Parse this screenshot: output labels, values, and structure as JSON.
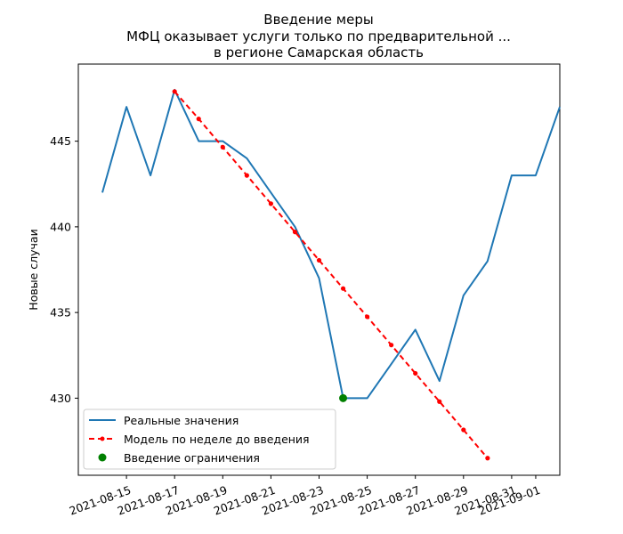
{
  "chart_data": {
    "type": "line",
    "title_lines": [
      "Введение меры",
      "МФЦ оказывает услуги только по предварительной ...",
      "в регионе Самарская область"
    ],
    "xlabel": "",
    "ylabel": "Новые случаи",
    "x_ticks": [
      "2021-08-15",
      "2021-08-17",
      "2021-08-19",
      "2021-08-21",
      "2021-08-23",
      "2021-08-25",
      "2021-08-27",
      "2021-08-29",
      "2021-08-31",
      "2021-09-01"
    ],
    "y_ticks": [
      430,
      435,
      440,
      445
    ],
    "xlim": [
      "2021-08-13",
      "2021-09-02"
    ],
    "ylim": [
      425.5,
      449.5
    ],
    "grid": false,
    "legend_position": "lower-left",
    "series": [
      {
        "name": "Реальные значения",
        "color": "#1f77b4",
        "style": "solid",
        "x": [
          "2021-08-14",
          "2021-08-15",
          "2021-08-16",
          "2021-08-17",
          "2021-08-18",
          "2021-08-19",
          "2021-08-20",
          "2021-08-21",
          "2021-08-22",
          "2021-08-23",
          "2021-08-24",
          "2021-08-25",
          "2021-08-26",
          "2021-08-27",
          "2021-08-28",
          "2021-08-29",
          "2021-08-30",
          "2021-08-31",
          "2021-09-01",
          "2021-09-02"
        ],
        "y": [
          442,
          447,
          443,
          448,
          445,
          445,
          444,
          442,
          440,
          437,
          430,
          430,
          432,
          434,
          431,
          436,
          438,
          443,
          443,
          447
        ]
      },
      {
        "name": "Модель по неделе до введения",
        "color": "#ff0000",
        "style": "dashed-dot-markers",
        "x": [
          "2021-08-17",
          "2021-08-18",
          "2021-08-19",
          "2021-08-20",
          "2021-08-21",
          "2021-08-22",
          "2021-08-23",
          "2021-08-24",
          "2021-08-25",
          "2021-08-26",
          "2021-08-27",
          "2021-08-28",
          "2021-08-29",
          "2021-08-30"
        ],
        "y": [
          447.9,
          446.3,
          444.65,
          443.0,
          441.35,
          439.7,
          438.05,
          436.4,
          434.75,
          433.1,
          431.45,
          429.8,
          428.15,
          426.5
        ]
      },
      {
        "name": "Введение ограничения",
        "color": "#008000",
        "style": "marker",
        "x": [
          "2021-08-24"
        ],
        "y": [
          430
        ]
      }
    ]
  }
}
